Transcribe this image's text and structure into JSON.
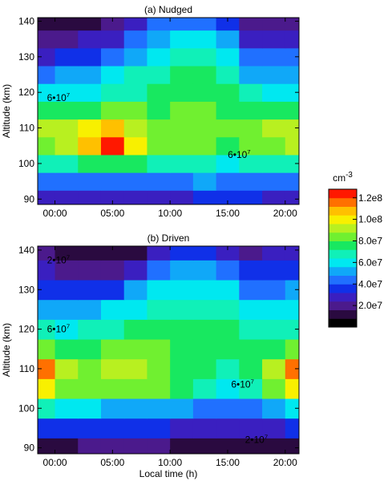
{
  "chart_data": [
    {
      "type": "contour",
      "title": "(a) Nudged",
      "ylabel": "Altitude (km)",
      "x": [
        -1,
        1,
        3,
        5,
        7,
        9,
        11,
        13,
        15,
        17,
        19,
        21
      ],
      "y": [
        90,
        95,
        100,
        105,
        110,
        115,
        120,
        125,
        130,
        135,
        140
      ],
      "z": [
        [
          28000000.0,
          28000000.0,
          28000000.0,
          28000000.0,
          28000000.0,
          28000000.0,
          30000000.0,
          32000000.0,
          32000000.0,
          32000000.0,
          30000000.0,
          30000000.0
        ],
        [
          42000000.0,
          40000000.0,
          42000000.0,
          44000000.0,
          43000000.0,
          44000000.0,
          46000000.0,
          48000000.0,
          46000000.0,
          46000000.0,
          45000000.0,
          45000000.0
        ],
        [
          65000000.0,
          68000000.0,
          73000000.0,
          78000000.0,
          72000000.0,
          65000000.0,
          65000000.0,
          66000000.0,
          62000000.0,
          66000000.0,
          68000000.0,
          68000000.0
        ],
        [
          85000000.0,
          95000000.0,
          108000000.0,
          122000000.0,
          100000000.0,
          80000000.0,
          80000000.0,
          80000000.0,
          76000000.0,
          82000000.0,
          86000000.0,
          88000000.0
        ],
        [
          88000000.0,
          92000000.0,
          100000000.0,
          110000000.0,
          95000000.0,
          82000000.0,
          84000000.0,
          86000000.0,
          80000000.0,
          84000000.0,
          90000000.0,
          95000000.0
        ],
        [
          72000000.0,
          75000000.0,
          78000000.0,
          82000000.0,
          80000000.0,
          78000000.0,
          80000000.0,
          80000000.0,
          76000000.0,
          73000000.0,
          73000000.0,
          74000000.0
        ],
        [
          58000000.0,
          60000000.0,
          63000000.0,
          67000000.0,
          70000000.0,
          73000000.0,
          76000000.0,
          76000000.0,
          72000000.0,
          65000000.0,
          63000000.0,
          63000000.0
        ],
        [
          45000000.0,
          48000000.0,
          52000000.0,
          58000000.0,
          65000000.0,
          70000000.0,
          72000000.0,
          72000000.0,
          68000000.0,
          55000000.0,
          52000000.0,
          52000000.0
        ],
        [
          30000000.0,
          32000000.0,
          38000000.0,
          45000000.0,
          55000000.0,
          63000000.0,
          68000000.0,
          68000000.0,
          60000000.0,
          42000000.0,
          40000000.0,
          40000000.0
        ],
        [
          20000000.0,
          20000000.0,
          25000000.0,
          30000000.0,
          45000000.0,
          55000000.0,
          60000000.0,
          58000000.0,
          48000000.0,
          30000000.0,
          28000000.0,
          28000000.0
        ],
        [
          12000000.0,
          12000000.0,
          15000000.0,
          20000000.0,
          30000000.0,
          40000000.0,
          45000000.0,
          42000000.0,
          35000000.0,
          22000000.0,
          20000000.0,
          20000000.0
        ]
      ],
      "xlim": [
        -1.5,
        21.2
      ],
      "ylim": [
        88.5,
        141
      ],
      "xticks": [
        {
          "value": 0,
          "label": "00:00"
        },
        {
          "value": 5,
          "label": "05:00"
        },
        {
          "value": 10,
          "label": "10:00"
        },
        {
          "value": 15,
          "label": "15:00"
        },
        {
          "value": 20,
          "label": "20:00"
        }
      ],
      "yticks": [
        90,
        100,
        110,
        120,
        130,
        140
      ],
      "annotations": [
        {
          "text": "6•10",
          "exponent": "7",
          "x": 0.3,
          "y": 118.5
        },
        {
          "text": "6•10",
          "exponent": "7",
          "x": 16,
          "y": 102.5
        }
      ]
    },
    {
      "type": "contour",
      "title": "(b) Driven",
      "ylabel": "Altitude (km)",
      "xlabel": "Local time (h)",
      "x": [
        -1,
        1,
        3,
        5,
        7,
        9,
        11,
        13,
        15,
        17,
        19,
        21
      ],
      "y": [
        90,
        95,
        100,
        105,
        110,
        115,
        120,
        125,
        130,
        135,
        140
      ],
      "z": [
        [
          15000000.0,
          15000000.0,
          16000000.0,
          18000000.0,
          18000000.0,
          16000000.0,
          15000000.0,
          15000000.0,
          14000000.0,
          14000000.0,
          15000000.0,
          15000000.0
        ],
        [
          35000000.0,
          33000000.0,
          32000000.0,
          32000000.0,
          32000000.0,
          32000000.0,
          30000000.0,
          28000000.0,
          26000000.0,
          28000000.0,
          30000000.0,
          33000000.0
        ],
        [
          64000000.0,
          58000000.0,
          56000000.0,
          55000000.0,
          54000000.0,
          52000000.0,
          48000000.0,
          44000000.0,
          40000000.0,
          46000000.0,
          54000000.0,
          62000000.0
        ],
        [
          102000000.0,
          84000000.0,
          84000000.0,
          84000000.0,
          84000000.0,
          80000000.0,
          72000000.0,
          65000000.0,
          62000000.0,
          70000000.0,
          82000000.0,
          100000000.0
        ],
        [
          115000000.0,
          90000000.0,
          86000000.0,
          88000000.0,
          88000000.0,
          86000000.0,
          78000000.0,
          73000000.0,
          70000000.0,
          78000000.0,
          92000000.0,
          115000000.0
        ],
        [
          80000000.0,
          78000000.0,
          78000000.0,
          80000000.0,
          82000000.0,
          82000000.0,
          78000000.0,
          75000000.0,
          73000000.0,
          75000000.0,
          78000000.0,
          84000000.0
        ],
        [
          65000000.0,
          63000000.0,
          65000000.0,
          70000000.0,
          73000000.0,
          75000000.0,
          76000000.0,
          74000000.0,
          72000000.0,
          68000000.0,
          68000000.0,
          70000000.0
        ],
        [
          52000000.0,
          50000000.0,
          52000000.0,
          58000000.0,
          63000000.0,
          68000000.0,
          70000000.0,
          69000000.0,
          65000000.0,
          60000000.0,
          58000000.0,
          58000000.0
        ],
        [
          38000000.0,
          35000000.0,
          35000000.0,
          38000000.0,
          48000000.0,
          56000000.0,
          60000000.0,
          60000000.0,
          56000000.0,
          45000000.0,
          45000000.0,
          48000000.0
        ],
        [
          25000000.0,
          22000000.0,
          20000000.0,
          22000000.0,
          30000000.0,
          40000000.0,
          48000000.0,
          48000000.0,
          40000000.0,
          32000000.0,
          32000000.0,
          35000000.0
        ],
        [
          18000000.0,
          15000000.0,
          12000000.0,
          12000000.0,
          15000000.0,
          25000000.0,
          35000000.0,
          35000000.0,
          25000000.0,
          22000000.0,
          24000000.0,
          25000000.0
        ]
      ],
      "xlim": [
        -1.5,
        21.2
      ],
      "ylim": [
        88.5,
        141
      ],
      "xticks": [
        {
          "value": 0,
          "label": "00:00"
        },
        {
          "value": 5,
          "label": "05:00"
        },
        {
          "value": 10,
          "label": "10:00"
        },
        {
          "value": 15,
          "label": "15:00"
        },
        {
          "value": 20,
          "label": "20:00"
        }
      ],
      "yticks": [
        90,
        100,
        110,
        120,
        130,
        140
      ],
      "annotations": [
        {
          "text": "2•10",
          "exponent": "7",
          "x": 0.3,
          "y": 137.5
        },
        {
          "text": "6•10",
          "exponent": "7",
          "x": 0.3,
          "y": 120
        },
        {
          "text": "6•10",
          "exponent": "7",
          "x": 16.3,
          "y": 106
        },
        {
          "text": "2•10",
          "exponent": "7",
          "x": 17.5,
          "y": 92
        }
      ]
    }
  ],
  "colorbar": {
    "title": "cm",
    "exponent": "-3",
    "levels": [
      0,
      8000000.0,
      16000000.0,
      24000000.0,
      32000000.0,
      40000000.0,
      48000000.0,
      56000000.0,
      64000000.0,
      72000000.0,
      80000000.0,
      88000000.0,
      96000000.0,
      104000000.0,
      112000000.0,
      120000000.0,
      128000000.0
    ],
    "colors": [
      "#000000",
      "#2a0a40",
      "#4b1a8c",
      "#3a1fc0",
      "#1030e8",
      "#2070ff",
      "#10a8f8",
      "#00e8f0",
      "#10f0b8",
      "#18e860",
      "#70f030",
      "#b8f020",
      "#f8f000",
      "#ffc000",
      "#ff7000",
      "#ff1800"
    ],
    "ticks": [
      {
        "value": 20000000.0,
        "label": "2.0e7"
      },
      {
        "value": 40000000.0,
        "label": "4.0e7"
      },
      {
        "value": 60000000.0,
        "label": "6.0e7"
      },
      {
        "value": 80000000.0,
        "label": "8.0e7"
      },
      {
        "value": 100000000.0,
        "label": "1.0e8"
      },
      {
        "value": 120000000.0,
        "label": "1.2e8"
      }
    ]
  }
}
